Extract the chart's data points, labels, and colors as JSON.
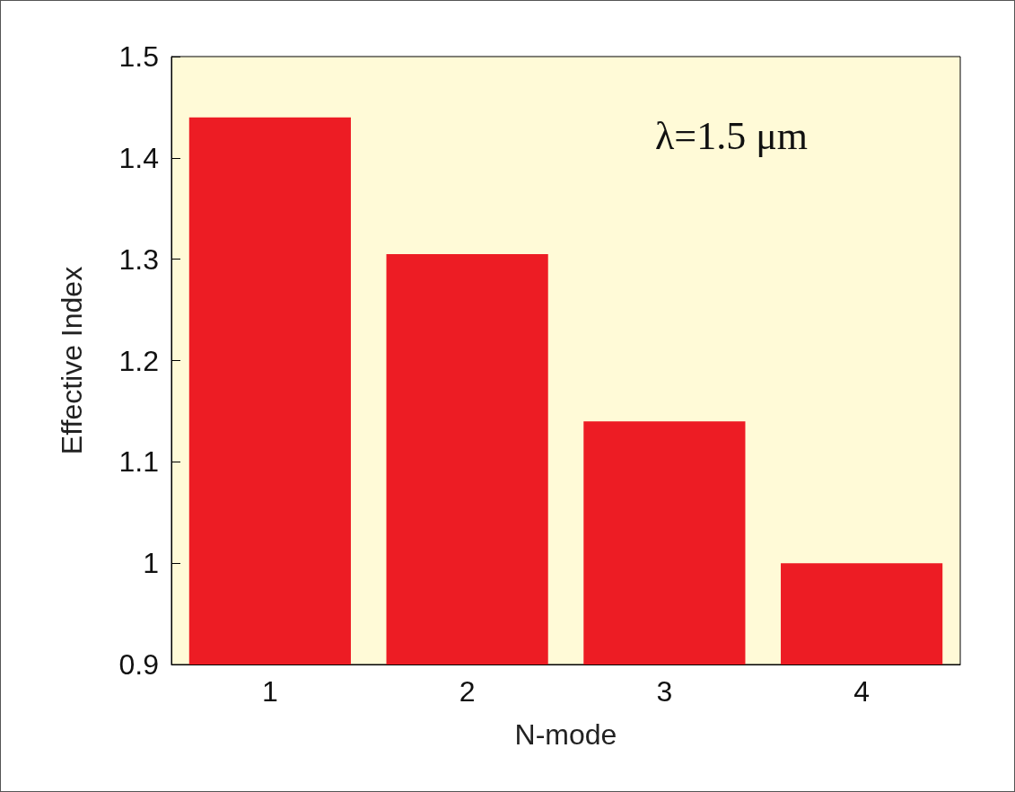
{
  "chart_data": {
    "type": "bar",
    "xlabel": "N-mode",
    "ylabel": "Effective Index",
    "categories": [
      "1",
      "2",
      "3",
      "4"
    ],
    "values": [
      1.44,
      1.305,
      1.14,
      1.0
    ],
    "color": "#ed1c24",
    "ylim": [
      0.9,
      1.5
    ],
    "yticks": [
      0.9,
      1,
      1.1,
      1.2,
      1.3,
      1.4,
      1.5
    ],
    "grid": false,
    "annotations": [
      "λ=1.5 μm"
    ]
  }
}
